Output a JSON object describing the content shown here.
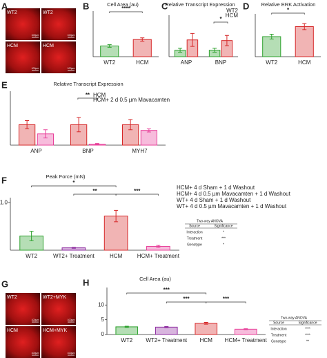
{
  "micrographs": [
    {
      "panel": "A",
      "tiles": [
        {
          "label": "WT2",
          "scale_bar": "100µm"
        },
        {
          "label": "WT2",
          "scale_bar": "100µm"
        },
        {
          "label": "HCM",
          "scale_bar": "100µm"
        },
        {
          "label": "HCM",
          "scale_bar": "100µm"
        }
      ]
    },
    {
      "panel": "G",
      "tiles": [
        {
          "label": "WT2",
          "scale_bar": "100µm"
        },
        {
          "label": "WT2+MYK",
          "scale_bar": "100µm"
        },
        {
          "label": "HCM",
          "scale_bar": "100µm"
        },
        {
          "label": "HCM+MYK",
          "scale_bar": "100µm"
        }
      ]
    }
  ],
  "anova_tables": [
    {
      "title": "Two-way ANOVA",
      "columns": [
        "Source",
        "Significance"
      ],
      "rows": [
        [
          "Interaction",
          "*"
        ],
        [
          "Treatment",
          "***"
        ],
        [
          "Genotype",
          "*"
        ]
      ]
    },
    {
      "title": "Two-way ANOVA",
      "columns": [
        "Source",
        "Significance"
      ],
      "rows": [
        [
          "Interaction",
          "****"
        ],
        [
          "Treatment",
          "****"
        ],
        [
          "Genotype",
          "**"
        ]
      ]
    }
  ],
  "chart_data": [
    {
      "type": "bar",
      "panel": "B",
      "title": "Cell Area (au)",
      "categories": [
        "WT2",
        "HCM"
      ],
      "values": [
        2.5,
        4
      ],
      "errors": [
        0.3,
        0.4
      ],
      "colors": [
        "#2ca02c",
        "#d62728"
      ],
      "ylim": [
        0,
        10
      ],
      "annotations": [
        "****"
      ]
    },
    {
      "type": "bar",
      "panel": "C",
      "title": "Relative Transcript Expression",
      "categories": [
        "ANP",
        "BNP"
      ],
      "series": [
        {
          "name": "WT2",
          "color": "#2ca02c",
          "values": [
            1,
            1
          ],
          "errors": [
            0.3,
            0.3
          ]
        },
        {
          "name": "HCM",
          "color": "#d62728",
          "values": [
            2.6,
            2.5
          ],
          "errors": [
            1,
            0.8
          ]
        }
      ],
      "ylim": [
        0,
        6
      ],
      "annotations": [
        "*"
      ]
    },
    {
      "type": "bar",
      "panel": "D",
      "title": "Relative ERK Activation",
      "categories": [
        "WT2",
        "HCM"
      ],
      "values": [
        1,
        1.5
      ],
      "errors": [
        0.12,
        0.15
      ],
      "colors": [
        "#2ca02c",
        "#d62728"
      ],
      "ylim": [
        0,
        2
      ],
      "annotations": [
        "*"
      ]
    },
    {
      "type": "bar",
      "panel": "E",
      "title": "Relative Transcript Expression",
      "categories": [
        "ANP",
        "BNP",
        "MYH7"
      ],
      "series": [
        {
          "name": "HCM",
          "color": "#d62728",
          "values": [
            1,
            1,
            1
          ],
          "errors": [
            0.2,
            0.35,
            0.25
          ]
        },
        {
          "name": "HCM+ 2 d  0.5 µm Mavacamten",
          "color": "#e8409a",
          "values": [
            0.55,
            0.05,
            0.72
          ],
          "errors": [
            0.2,
            0.03,
            0.08
          ]
        }
      ],
      "ylim": [
        0,
        2.5
      ],
      "annotations": [
        "**"
      ]
    },
    {
      "type": "bar",
      "panel": "F",
      "title": "Peak Force (mN)",
      "categories": [
        "WT2",
        "WT2+ Treatment",
        "HCM",
        "HCM+ Treatment"
      ],
      "values": [
        0.3,
        0.05,
        0.72,
        0.08
      ],
      "errors": [
        0.1,
        0.01,
        0.12,
        0.02
      ],
      "colors": [
        "#2ca02c",
        "#8e2ca0",
        "#d62728",
        "#e8409a"
      ],
      "ylim": [
        0,
        1.05
      ],
      "yticks": [
        {
          "value": 1,
          "label": "1.0"
        }
      ],
      "annotations": [
        "*",
        "**",
        "***"
      ],
      "legend": [
        {
          "text": "HCM+ 4 d Sham + 1 d Washout",
          "color": "#b0151f"
        },
        {
          "text": "HCM+ 4 d 0.5 µm Mavacamten + 1 d Washout",
          "color": "#d6285a"
        },
        {
          "text": "WT+ 4 d Sham + 1 d Washout",
          "color": "#2ca02c"
        },
        {
          "text": "WT+ 4 d 0.5 µm Mavacamten + 1 d Washout",
          "color": "#8e2ca0"
        }
      ]
    },
    {
      "type": "bar",
      "panel": "H",
      "title": "Cell Area (au)",
      "categories": [
        "WT2",
        "WT2+ Treatment",
        "HCM",
        "HCM+ Treatment"
      ],
      "values": [
        2.6,
        2.5,
        3.8,
        1.8
      ],
      "errors": [
        0.2,
        0.2,
        0.3,
        0.15
      ],
      "colors": [
        "#2ca02c",
        "#8e2ca0",
        "#d62728",
        "#e8409a"
      ],
      "ylim": [
        0,
        15
      ],
      "yticks": [
        0,
        5,
        10
      ],
      "annotations": [
        "***",
        "***",
        "***"
      ]
    }
  ]
}
